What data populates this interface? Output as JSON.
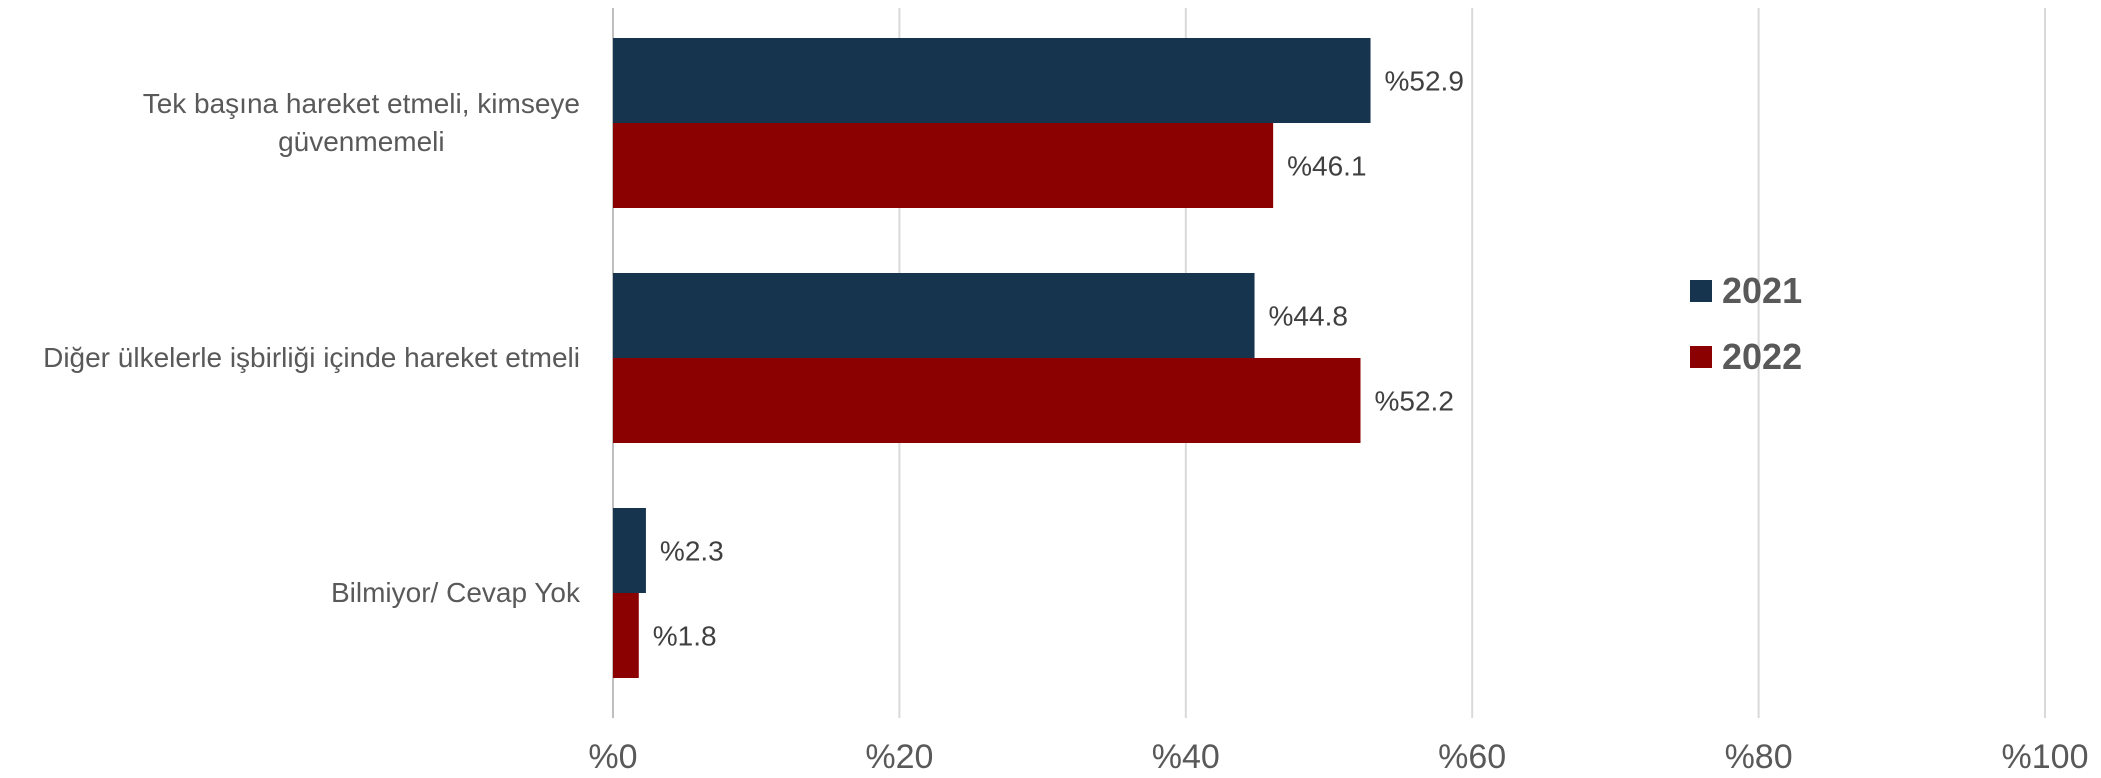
{
  "chart_data": {
    "type": "bar",
    "orientation": "horizontal",
    "categories": [
      "Tek başına hareket etmeli, kimseye güvenmemeli",
      "Diğer ülkelerle işbirliği içinde hareket etmeli",
      "Bilmiyor/ Cevap Yok"
    ],
    "category_lines": [
      [
        "Tek başına hareket etmeli, kimseye",
        "güvenmemeli"
      ],
      [
        "Diğer ülkelerle işbirliği içinde hareket etmeli"
      ],
      [
        "Bilmiyor/ Cevap Yok"
      ]
    ],
    "series": [
      {
        "name": "2021",
        "color": "#17344f",
        "values": [
          52.9,
          44.8,
          2.3
        ]
      },
      {
        "name": "2022",
        "color": "#8b0000",
        "values": [
          46.1,
          52.2,
          1.8
        ]
      }
    ],
    "value_prefix": "%",
    "xlim": [
      0,
      100
    ],
    "xticks": [
      0,
      20,
      40,
      60,
      80,
      100
    ],
    "xtick_labels": [
      "%0",
      "%20",
      "%40",
      "%60",
      "%80",
      "%100"
    ],
    "grid": true,
    "legend_position": "right",
    "title": "",
    "xlabel": "",
    "ylabel": ""
  }
}
